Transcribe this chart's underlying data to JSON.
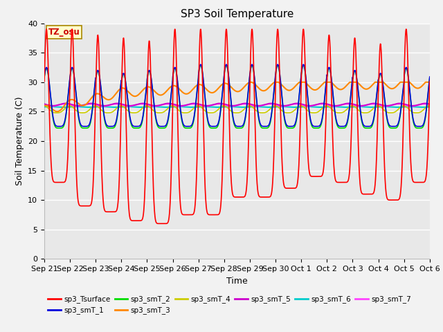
{
  "title": "SP3 Soil Temperature",
  "ylabel": "Soil Temperature (C)",
  "xlabel": "Time",
  "ylim": [
    0,
    40
  ],
  "yticks": [
    0,
    5,
    10,
    15,
    20,
    25,
    30,
    35,
    40
  ],
  "x_labels": [
    "Sep 21",
    "Sep 22",
    "Sep 23",
    "Sep 24",
    "Sep 25",
    "Sep 26",
    "Sep 27",
    "Sep 28",
    "Sep 29",
    "Sep 30",
    "Oct 1",
    "Oct 2",
    "Oct 3",
    "Oct 4",
    "Oct 5",
    "Oct 6"
  ],
  "annotation_text": "TZ_osu",
  "series_colors": {
    "sp3_Tsurface": "#FF0000",
    "sp3_smT_1": "#0000DD",
    "sp3_smT_2": "#00DD00",
    "sp3_smT_3": "#FF8800",
    "sp3_smT_4": "#CCCC00",
    "sp3_smT_5": "#CC00CC",
    "sp3_smT_6": "#00CCCC",
    "sp3_smT_7": "#FF44FF"
  },
  "bg_color": "#E8E8E8",
  "grid_color": "#FFFFFF",
  "title_fontsize": 11,
  "label_fontsize": 9,
  "tick_fontsize": 8
}
